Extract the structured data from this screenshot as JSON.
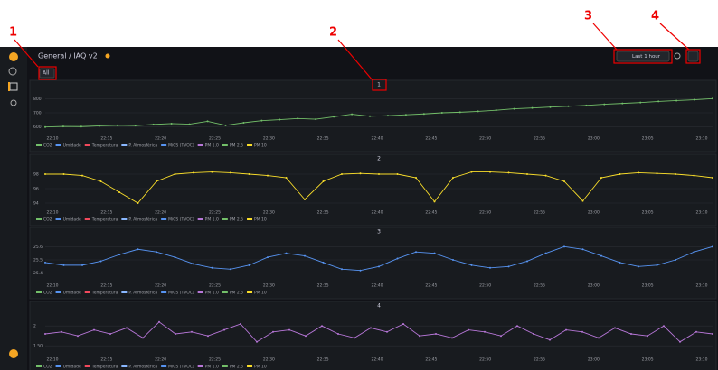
{
  "annotations": [
    "1",
    "2",
    "3",
    "4"
  ],
  "header": {
    "breadcrumb": "General / IAQ v2",
    "time_range": "Last 1 hour"
  },
  "variable": {
    "value": "All"
  },
  "x_labels": [
    "22:10",
    "22:15",
    "22:20",
    "22:25",
    "22:30",
    "22:35",
    "22:40",
    "22:45",
    "22:50",
    "22:55",
    "23:00",
    "23:05",
    "23:10"
  ],
  "legend": [
    {
      "name": "CO2",
      "color": "#73bf69"
    },
    {
      "name": "Umidade",
      "color": "#5794f2"
    },
    {
      "name": "Temperatura",
      "color": "#f2495c"
    },
    {
      "name": "P. Atmosférica",
      "color": "#8ab8ff"
    },
    {
      "name": "MiCS (TVOC)",
      "color": "#5794f2"
    },
    {
      "name": "PM 1.0",
      "color": "#b877d9"
    },
    {
      "name": "PM 2.5",
      "color": "#73bf69"
    },
    {
      "name": "PM 10",
      "color": "#fade2a"
    }
  ],
  "panels": [
    {
      "title": "1",
      "color": "#73bf69",
      "ylim": [
        560,
        840
      ],
      "yticks": [
        600,
        700,
        800
      ],
      "values": [
        600,
        604,
        603,
        608,
        612,
        610,
        618,
        624,
        620,
        640,
        612,
        630,
        645,
        652,
        660,
        655,
        672,
        690,
        676,
        680,
        686,
        692,
        700,
        704,
        710,
        718,
        728,
        734,
        740,
        746,
        752,
        760,
        766,
        772,
        780,
        786,
        792,
        800
      ]
    },
    {
      "title": "2",
      "color": "#fade2a",
      "ylim": [
        93.5,
        99
      ],
      "yticks": [
        94,
        96,
        98
      ],
      "values": [
        98,
        98,
        97.8,
        97,
        95.5,
        94,
        97,
        98,
        98.2,
        98.3,
        98.2,
        98,
        97.8,
        97.5,
        94.5,
        97,
        98,
        98.1,
        98,
        98,
        97.5,
        94.2,
        97.5,
        98.3,
        98.3,
        98.2,
        98,
        97.8,
        97,
        94.3,
        97.5,
        98,
        98.2,
        98.1,
        98,
        97.8,
        97.5
      ]
    },
    {
      "title": "3",
      "color": "#5794f2",
      "ylim": [
        25.35,
        25.65
      ],
      "yticks": [
        25.4,
        25.5,
        25.6
      ],
      "values": [
        25.48,
        25.46,
        25.46,
        25.49,
        25.54,
        25.58,
        25.56,
        25.52,
        25.47,
        25.44,
        25.43,
        25.46,
        25.52,
        25.55,
        25.53,
        25.48,
        25.43,
        25.42,
        25.45,
        25.51,
        25.56,
        25.55,
        25.5,
        25.46,
        25.44,
        25.45,
        25.49,
        25.55,
        25.6,
        25.58,
        25.53,
        25.48,
        25.45,
        25.46,
        25.5,
        25.56,
        25.6
      ]
    },
    {
      "title": "4",
      "color": "#b877d9",
      "ylim": [
        1.3,
        2.3
      ],
      "yticks": [
        {
          "value": 1.5,
          "label": "1.50"
        },
        2
      ],
      "values": [
        1.8,
        1.85,
        1.75,
        1.9,
        1.8,
        1.95,
        1.7,
        2.1,
        1.8,
        1.85,
        1.75,
        1.9,
        2.05,
        1.6,
        1.85,
        1.9,
        1.75,
        2.0,
        1.8,
        1.7,
        1.95,
        1.85,
        2.05,
        1.75,
        1.8,
        1.7,
        1.9,
        1.85,
        1.75,
        2.0,
        1.8,
        1.65,
        1.9,
        1.85,
        1.7,
        1.95,
        1.8,
        1.75,
        2.0,
        1.6,
        1.85,
        1.8
      ]
    }
  ]
}
